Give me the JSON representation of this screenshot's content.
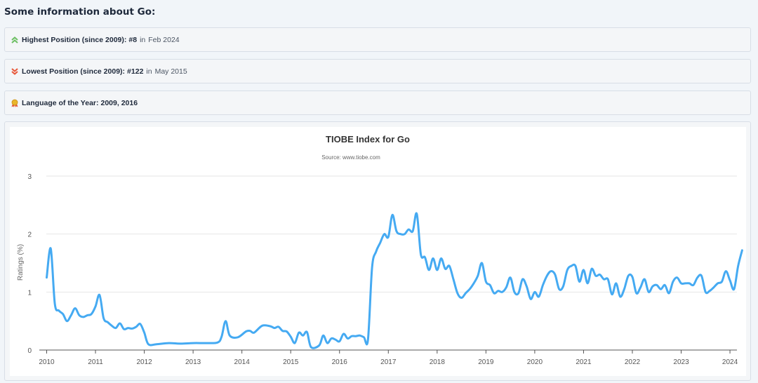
{
  "heading": "Some information about Go:",
  "info": {
    "highest": {
      "label": "Highest Position (since 2009):",
      "value": "#8",
      "sep": "in",
      "date": "Feb 2024"
    },
    "lowest": {
      "label": "Lowest Position (since 2009):",
      "value": "#122",
      "sep": "in",
      "date": "May 2015"
    },
    "lang_year": {
      "label": "Language of the Year:",
      "value": "2009, 2016"
    }
  },
  "colors": {
    "series": "#45aaf2",
    "up_arrow": "#6dbf63",
    "down_arrow": "#e8583a",
    "award": "#e9b52b"
  },
  "icons": {
    "highest": "double-chevron-up-icon",
    "lowest": "double-chevron-down-icon",
    "lang_year": "award-icon"
  },
  "chart_data": {
    "type": "line",
    "title": "TIOBE Index for Go",
    "subtitle": "Source: www.tiobe.com",
    "xlabel": "",
    "ylabel": "Ratings (%)",
    "ylim": [
      0,
      3
    ],
    "yticks": [
      0,
      1,
      2,
      3
    ],
    "xticks": [
      "2010",
      "2011",
      "2012",
      "2013",
      "2014",
      "2015",
      "2016",
      "2017",
      "2018",
      "2019",
      "2020",
      "2021",
      "2022",
      "2023",
      "2024"
    ],
    "grid": true,
    "series": [
      {
        "name": "",
        "points": [
          [
            "2010-01",
            1.25
          ],
          [
            "2010-02",
            1.75
          ],
          [
            "2010-03",
            0.8
          ],
          [
            "2010-04",
            0.68
          ],
          [
            "2010-05",
            0.62
          ],
          [
            "2010-06",
            0.5
          ],
          [
            "2010-07",
            0.6
          ],
          [
            "2010-08",
            0.72
          ],
          [
            "2010-09",
            0.6
          ],
          [
            "2010-10",
            0.57
          ],
          [
            "2010-11",
            0.6
          ],
          [
            "2010-12",
            0.62
          ],
          [
            "2011-01",
            0.75
          ],
          [
            "2011-02",
            0.95
          ],
          [
            "2011-03",
            0.55
          ],
          [
            "2011-04",
            0.48
          ],
          [
            "2011-05",
            0.42
          ],
          [
            "2011-06",
            0.38
          ],
          [
            "2011-07",
            0.46
          ],
          [
            "2011-08",
            0.36
          ],
          [
            "2011-09",
            0.38
          ],
          [
            "2011-10",
            0.37
          ],
          [
            "2011-11",
            0.4
          ],
          [
            "2011-12",
            0.45
          ],
          [
            "2012-01",
            0.3
          ],
          [
            "2012-02",
            0.1
          ],
          [
            "2012-04",
            0.1
          ],
          [
            "2012-07",
            0.12
          ],
          [
            "2012-10",
            0.11
          ],
          [
            "2013-01",
            0.12
          ],
          [
            "2013-04",
            0.12
          ],
          [
            "2013-07",
            0.13
          ],
          [
            "2013-08",
            0.23
          ],
          [
            "2013-09",
            0.5
          ],
          [
            "2013-10",
            0.25
          ],
          [
            "2013-12",
            0.22
          ],
          [
            "2014-02",
            0.32
          ],
          [
            "2014-03",
            0.33
          ],
          [
            "2014-04",
            0.3
          ],
          [
            "2014-06",
            0.42
          ],
          [
            "2014-08",
            0.41
          ],
          [
            "2014-09",
            0.38
          ],
          [
            "2014-10",
            0.4
          ],
          [
            "2014-11",
            0.33
          ],
          [
            "2014-12",
            0.32
          ],
          [
            "2015-01",
            0.23
          ],
          [
            "2015-02",
            0.12
          ],
          [
            "2015-03",
            0.3
          ],
          [
            "2015-04",
            0.25
          ],
          [
            "2015-05",
            0.31
          ],
          [
            "2015-06",
            0.05
          ],
          [
            "2015-08",
            0.08
          ],
          [
            "2015-09",
            0.25
          ],
          [
            "2015-10",
            0.12
          ],
          [
            "2015-11",
            0.2
          ],
          [
            "2015-12",
            0.18
          ],
          [
            "2016-01",
            0.15
          ],
          [
            "2016-02",
            0.28
          ],
          [
            "2016-03",
            0.2
          ],
          [
            "2016-04",
            0.24
          ],
          [
            "2016-05",
            0.24
          ],
          [
            "2016-06",
            0.25
          ],
          [
            "2016-07",
            0.22
          ],
          [
            "2016-08",
            0.18
          ],
          [
            "2016-09",
            1.42
          ],
          [
            "2016-10",
            1.7
          ],
          [
            "2016-11",
            1.85
          ],
          [
            "2016-12",
            2.0
          ],
          [
            "2017-01",
            1.95
          ],
          [
            "2017-02",
            2.33
          ],
          [
            "2017-03",
            2.05
          ],
          [
            "2017-04",
            2.0
          ],
          [
            "2017-05",
            2.0
          ],
          [
            "2017-06",
            2.08
          ],
          [
            "2017-07",
            2.05
          ],
          [
            "2017-08",
            2.35
          ],
          [
            "2017-09",
            1.65
          ],
          [
            "2017-10",
            1.6
          ],
          [
            "2017-11",
            1.38
          ],
          [
            "2017-12",
            1.58
          ],
          [
            "2018-01",
            1.38
          ],
          [
            "2018-02",
            1.58
          ],
          [
            "2018-03",
            1.4
          ],
          [
            "2018-04",
            1.45
          ],
          [
            "2018-05",
            1.22
          ],
          [
            "2018-06",
            0.98
          ],
          [
            "2018-07",
            0.9
          ],
          [
            "2018-08",
            0.98
          ],
          [
            "2018-09",
            1.05
          ],
          [
            "2018-10",
            1.15
          ],
          [
            "2018-11",
            1.28
          ],
          [
            "2018-12",
            1.5
          ],
          [
            "2019-01",
            1.18
          ],
          [
            "2019-02",
            1.12
          ],
          [
            "2019-03",
            0.98
          ],
          [
            "2019-04",
            1.02
          ],
          [
            "2019-05",
            1.0
          ],
          [
            "2019-06",
            1.08
          ],
          [
            "2019-07",
            1.25
          ],
          [
            "2019-08",
            1.0
          ],
          [
            "2019-09",
            0.98
          ],
          [
            "2019-10",
            1.22
          ],
          [
            "2019-11",
            1.1
          ],
          [
            "2019-12",
            0.88
          ],
          [
            "2020-01",
            1.0
          ],
          [
            "2020-02",
            0.92
          ],
          [
            "2020-03",
            1.12
          ],
          [
            "2020-04",
            1.28
          ],
          [
            "2020-05",
            1.36
          ],
          [
            "2020-06",
            1.3
          ],
          [
            "2020-07",
            1.05
          ],
          [
            "2020-08",
            1.1
          ],
          [
            "2020-09",
            1.38
          ],
          [
            "2020-10",
            1.45
          ],
          [
            "2020-11",
            1.45
          ],
          [
            "2020-12",
            1.18
          ],
          [
            "2021-01",
            1.38
          ],
          [
            "2021-02",
            1.15
          ],
          [
            "2021-03",
            1.4
          ],
          [
            "2021-04",
            1.28
          ],
          [
            "2021-05",
            1.3
          ],
          [
            "2021-06",
            1.22
          ],
          [
            "2021-07",
            1.22
          ],
          [
            "2021-08",
            0.96
          ],
          [
            "2021-09",
            1.15
          ],
          [
            "2021-10",
            0.92
          ],
          [
            "2021-11",
            1.05
          ],
          [
            "2021-12",
            1.28
          ],
          [
            "2022-01",
            1.26
          ],
          [
            "2022-02",
            0.98
          ],
          [
            "2022-03",
            1.08
          ],
          [
            "2022-04",
            1.22
          ],
          [
            "2022-05",
            1.0
          ],
          [
            "2022-06",
            1.1
          ],
          [
            "2022-07",
            1.12
          ],
          [
            "2022-08",
            1.05
          ],
          [
            "2022-09",
            1.12
          ],
          [
            "2022-10",
            0.98
          ],
          [
            "2022-11",
            1.18
          ],
          [
            "2022-12",
            1.25
          ],
          [
            "2023-01",
            1.15
          ],
          [
            "2023-02",
            1.15
          ],
          [
            "2023-03",
            1.15
          ],
          [
            "2023-04",
            1.12
          ],
          [
            "2023-05",
            1.25
          ],
          [
            "2023-06",
            1.28
          ],
          [
            "2023-07",
            1.0
          ],
          [
            "2023-08",
            1.02
          ],
          [
            "2023-09",
            1.08
          ],
          [
            "2023-10",
            1.15
          ],
          [
            "2023-11",
            1.18
          ],
          [
            "2023-12",
            1.36
          ],
          [
            "2024-01",
            1.2
          ],
          [
            "2024-02",
            1.05
          ],
          [
            "2024-03",
            1.45
          ],
          [
            "2024-04",
            1.72
          ]
        ]
      }
    ]
  }
}
